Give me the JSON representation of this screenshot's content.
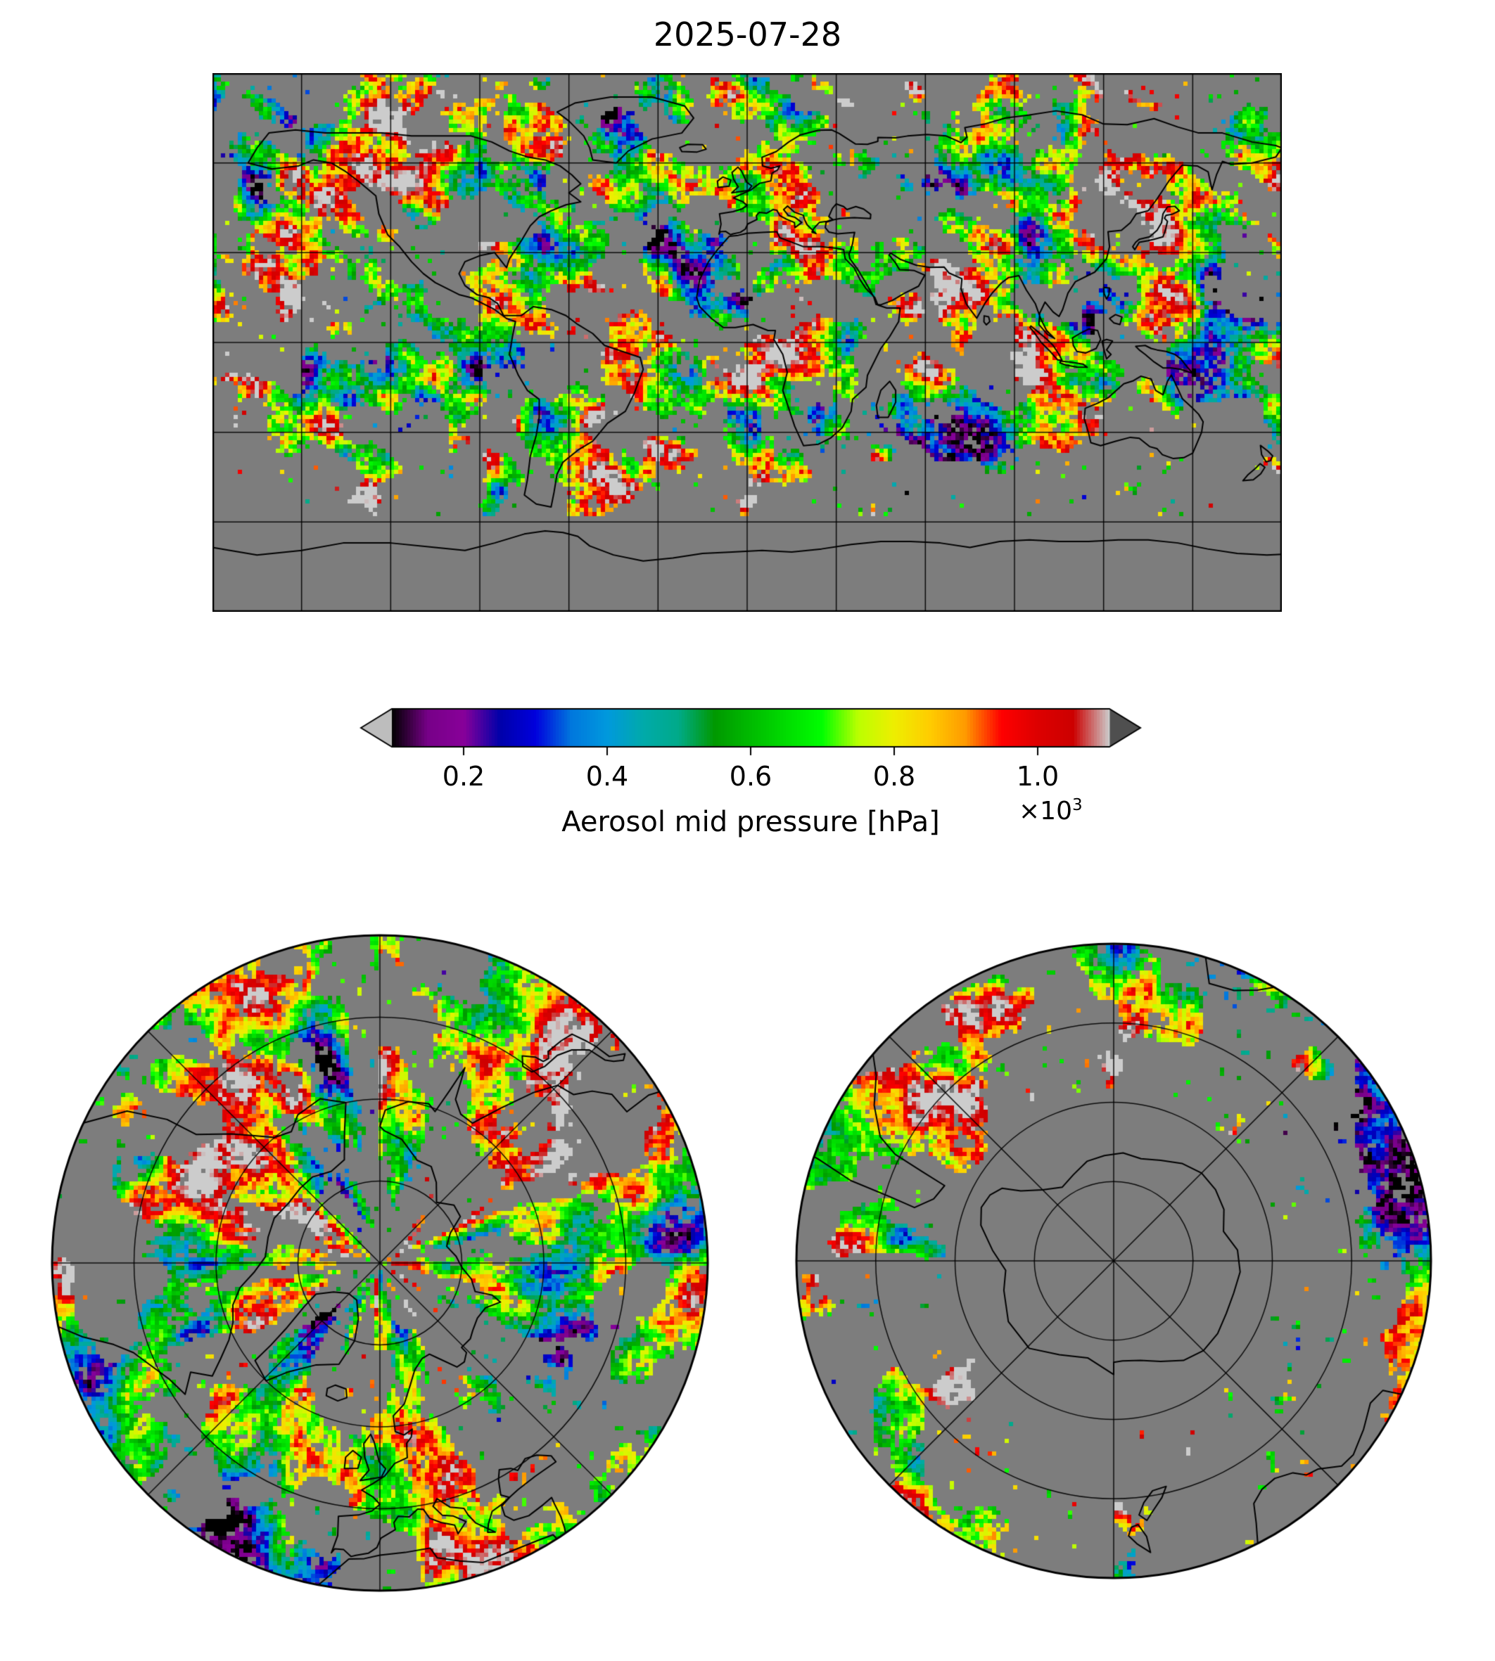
{
  "title": "2025-07-28",
  "colorbar": {
    "label": "Aerosol mid pressure [hPa]",
    "scale_note": "×10",
    "scale_exp": "3",
    "ticks": [
      "0.2",
      "0.4",
      "0.6",
      "0.8",
      "1.0"
    ],
    "tick_values": [
      200,
      400,
      600,
      800,
      1000
    ],
    "under_color": "#bdbdbd",
    "over_color": "#4f4f4f"
  },
  "chart_data": {
    "type": "heatmap",
    "title": "2025-07-28",
    "variable": "Aerosol mid pressure",
    "units": "hPa",
    "vmin": 100,
    "vmax": 1100,
    "tick_values": [
      200,
      400,
      600,
      800,
      1000
    ],
    "tick_labels": [
      "0.2",
      "0.4",
      "0.6",
      "0.8",
      "1.0"
    ],
    "scale_factor_label": "×10³",
    "background_color": "#7d7d7d",
    "coastline_color": "#000000",
    "gridline_color": "#000000",
    "colormap": {
      "name": "nipy_spectral",
      "stops": [
        [
          0.0,
          "#000000"
        ],
        [
          0.05,
          "#770088"
        ],
        [
          0.1,
          "#880099"
        ],
        [
          0.15,
          "#0000aa"
        ],
        [
          0.2,
          "#0000dd"
        ],
        [
          0.25,
          "#0077dd"
        ],
        [
          0.3,
          "#0099dd"
        ],
        [
          0.35,
          "#00aaaa"
        ],
        [
          0.4,
          "#00aa88"
        ],
        [
          0.45,
          "#009900"
        ],
        [
          0.5,
          "#00bb00"
        ],
        [
          0.55,
          "#00dd00"
        ],
        [
          0.6,
          "#00ff00"
        ],
        [
          0.65,
          "#bbff00"
        ],
        [
          0.7,
          "#eeee00"
        ],
        [
          0.75,
          "#ffcc00"
        ],
        [
          0.8,
          "#ff9900"
        ],
        [
          0.85,
          "#ff0000"
        ],
        [
          0.9,
          "#dd0000"
        ],
        [
          0.95,
          "#cc0000"
        ],
        [
          1.0,
          "#cccccc"
        ]
      ]
    },
    "panels": [
      {
        "name": "global-map",
        "projection": "equirectangular",
        "lon_range": [
          -180,
          180
        ],
        "lat_range": [
          -90,
          90
        ],
        "grid_spacing_deg": 30
      },
      {
        "name": "north-polar-map",
        "projection": "polar-azimuthal",
        "pole": "north",
        "lat_edge": 30,
        "parallels": [
          75,
          60,
          45
        ],
        "meridian_spacing_deg": 45
      },
      {
        "name": "south-polar-map",
        "projection": "polar-azimuthal",
        "pole": "south",
        "lat_edge": -30,
        "parallels": [
          -75,
          -60,
          -45
        ],
        "meridian_spacing_deg": 45
      }
    ]
  }
}
